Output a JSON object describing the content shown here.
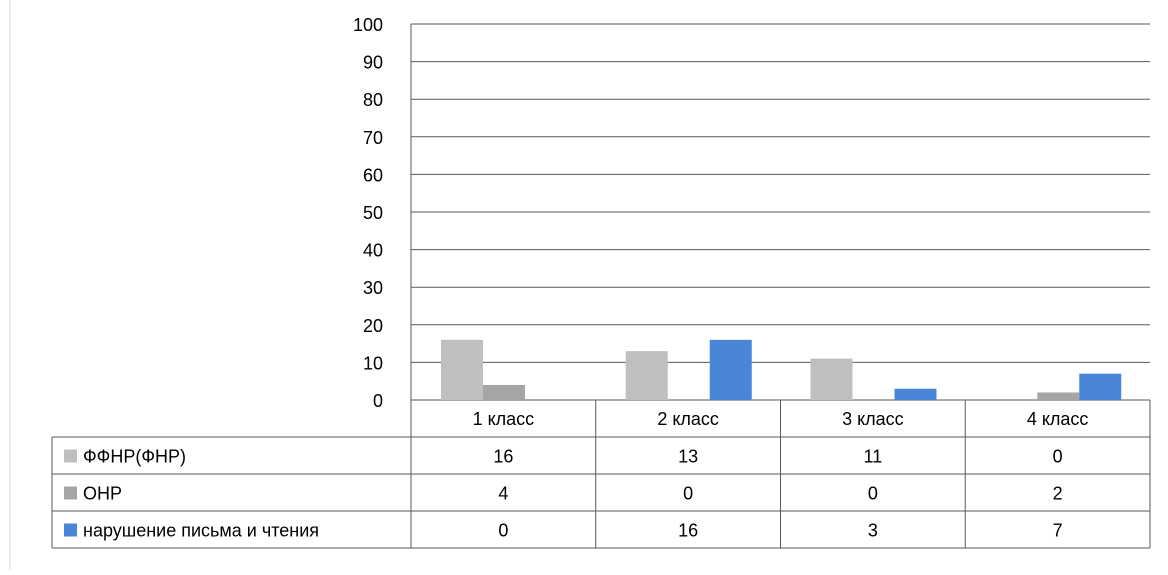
{
  "chart_data": {
    "type": "bar",
    "title": "",
    "xlabel": "",
    "ylabel": "",
    "ylim": [
      0,
      100
    ],
    "yticks": [
      0,
      10,
      20,
      30,
      40,
      50,
      60,
      70,
      80,
      90,
      100
    ],
    "grid": true,
    "legend": "data-table",
    "categories": [
      "1 класс",
      "2 класс",
      "3 класс",
      "4 класс"
    ],
    "series": [
      {
        "name": "ФФНР(ФНР)",
        "color": "#bfbfbf",
        "values": [
          16,
          13,
          11,
          0
        ]
      },
      {
        "name": "ОНР",
        "color": "#a5a5a5",
        "values": [
          4,
          0,
          0,
          2
        ]
      },
      {
        "name": "нарушение письма и чтения",
        "color": "#4a86d8",
        "values": [
          0,
          16,
          3,
          7
        ]
      }
    ]
  }
}
